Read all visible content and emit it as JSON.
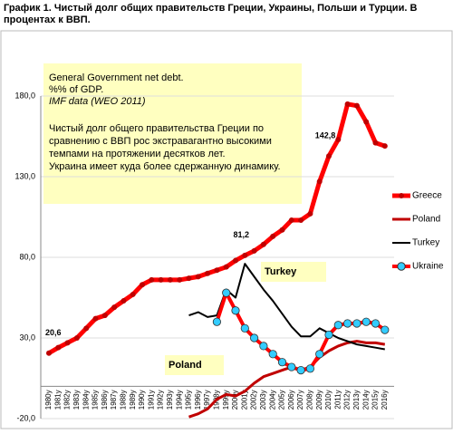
{
  "chart_data": {
    "type": "line",
    "title_lines": [
      "График 1. Чистый долг общих правительств Греции, Украины, Польши и Турции. В",
      "процентах к ВВП."
    ],
    "note_lines": [
      "General Government net debt.",
      "%% of GDP.",
      "IMF data (WEO 2011)",
      "Чистый долг общего правительства Греции по",
      "сравнению с ВВП рос экстравагантно высокими",
      "темпами на протяжении десятков лет.",
      "Украина имеет куда более сдержанную динамику."
    ],
    "series_tags": [
      "Turkey",
      "Poland"
    ],
    "categories": [
      "1980y",
      "1981y",
      "1982y",
      "1983y",
      "1984y",
      "1985y",
      "1986y",
      "1987y",
      "1988y",
      "1989y",
      "1990y",
      "1991y",
      "1992y",
      "1993y",
      "1994y",
      "1995y",
      "1996y",
      "1997y",
      "1998y",
      "1999y",
      "2000y",
      "2001y",
      "2002y",
      "2003y",
      "2004y",
      "2005y",
      "2006y",
      "2007y",
      "2008y",
      "2009y",
      "2010y",
      "2011y",
      "2012y",
      "2013y",
      "2014y",
      "2015y",
      "2016y"
    ],
    "ylim": [
      -20,
      180
    ],
    "yticks": [
      {
        "value": -20,
        "label": "-20,0"
      },
      {
        "value": 30,
        "label": "30,0"
      },
      {
        "value": 80,
        "label": "80,0"
      },
      {
        "value": 130,
        "label": "130,0"
      },
      {
        "value": 180,
        "label": "180,0"
      }
    ],
    "grid": true,
    "legend": "right",
    "series": [
      {
        "name": "Greece",
        "color": "#ff0000",
        "marker": "#c00000",
        "values": [
          20.6,
          24,
          27,
          30,
          36,
          42,
          44,
          49,
          53,
          57,
          63,
          66,
          66,
          66,
          66,
          67,
          68,
          70,
          72,
          74,
          78,
          81.2,
          84,
          88,
          93,
          97,
          103,
          103,
          107,
          127,
          142.8,
          153,
          175,
          174,
          164,
          151,
          149
        ],
        "value_labels": [
          "20,6",
          null,
          null,
          null,
          null,
          null,
          null,
          null,
          null,
          null,
          null,
          null,
          null,
          null,
          null,
          null,
          null,
          null,
          null,
          null,
          null,
          "81,2",
          null,
          null,
          null,
          null,
          null,
          null,
          null,
          null,
          "142,8",
          null,
          null,
          null,
          null,
          null,
          null
        ]
      },
      {
        "name": "Poland",
        "color": "#c00000",
        "values": [
          null,
          null,
          null,
          null,
          null,
          null,
          null,
          null,
          null,
          null,
          null,
          null,
          null,
          null,
          null,
          -19,
          -17,
          -14,
          -8,
          -5,
          -6,
          -3,
          2,
          6,
          8,
          10,
          12,
          10,
          12,
          18,
          22,
          25,
          27,
          28,
          27,
          27,
          26
        ]
      },
      {
        "name": "Turkey",
        "color": "#000000",
        "values": [
          null,
          null,
          null,
          null,
          null,
          null,
          null,
          null,
          null,
          null,
          null,
          null,
          null,
          null,
          null,
          44,
          46,
          43,
          44,
          60,
          55,
          76,
          68,
          60,
          53,
          45,
          37,
          31,
          31,
          36,
          33,
          30,
          28,
          26,
          25,
          24,
          23
        ]
      },
      {
        "name": "Ukraine",
        "color": "#ff0000",
        "marker": "#33ccff",
        "values": [
          null,
          null,
          null,
          null,
          null,
          null,
          null,
          null,
          null,
          null,
          null,
          null,
          null,
          null,
          null,
          null,
          null,
          null,
          40,
          58,
          47,
          36,
          30,
          25,
          20,
          15,
          12,
          10,
          11,
          20,
          32,
          38,
          39,
          39,
          40,
          39,
          35
        ]
      }
    ]
  }
}
